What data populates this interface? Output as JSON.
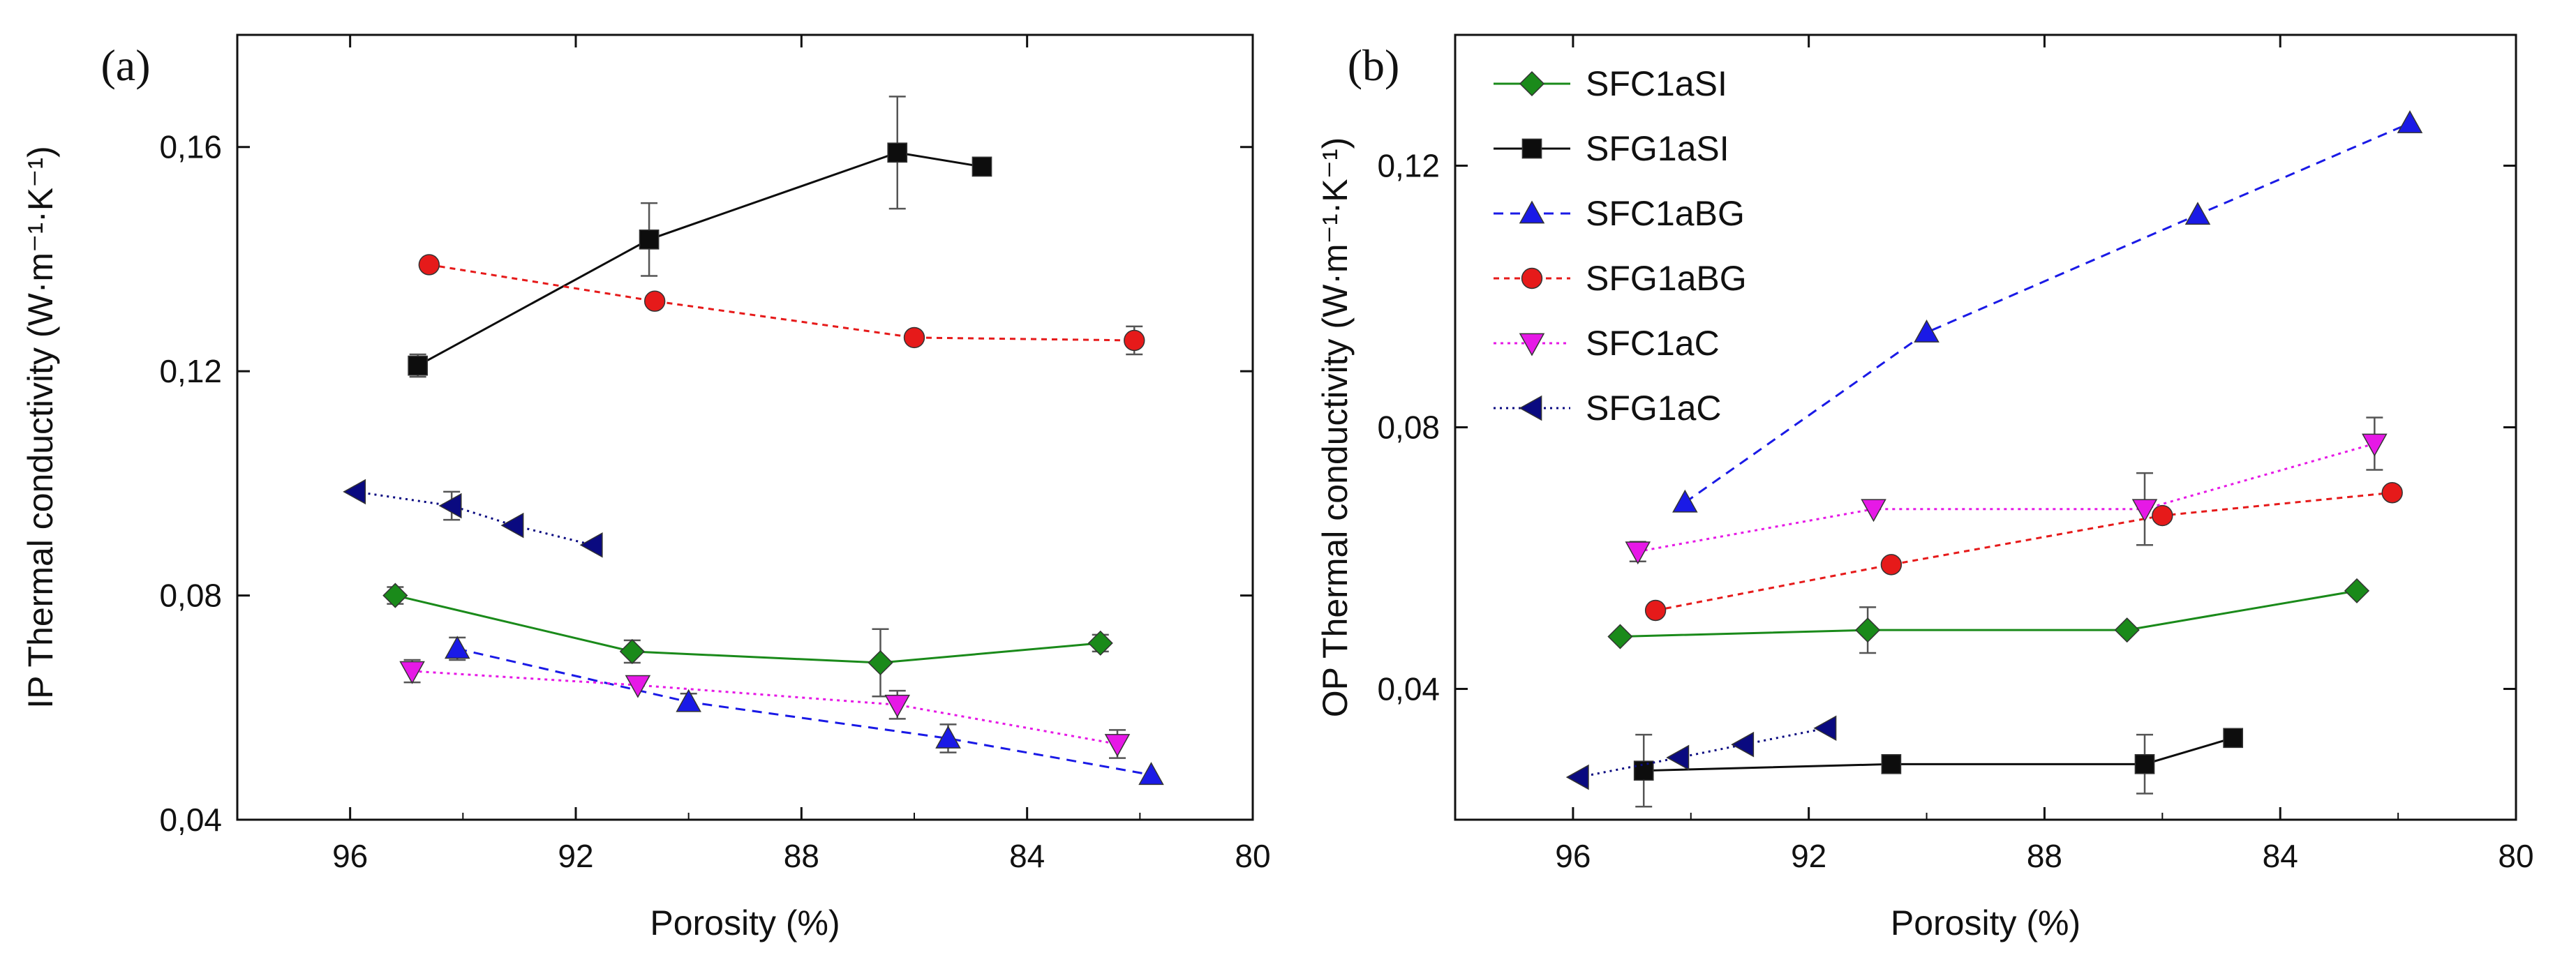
{
  "chart_data": [
    {
      "type": "scatter",
      "panel_label": "(a)",
      "xlabel": "Porosity (%)",
      "ylabel": "IP Thermal conductivity (W·m⁻¹·K⁻¹)",
      "xlim": [
        98,
        80
      ],
      "ylim": [
        0.04,
        0.18
      ],
      "x_ticks": [
        96,
        92,
        88,
        84,
        80
      ],
      "y_ticks": [
        0.04,
        0.08,
        0.12,
        0.16
      ],
      "x_tick_labels": [
        "96",
        "92",
        "88",
        "84",
        "80"
      ],
      "y_tick_labels": [
        "0,04",
        "0,08",
        "0,12",
        "0,16"
      ],
      "series": [
        {
          "name": "SFC1aSI",
          "color": "#1a8a1a",
          "marker": "diamond",
          "dash": "",
          "points": [
            {
              "x": 95.2,
              "y": 0.08,
              "err": 0.0015
            },
            {
              "x": 91.0,
              "y": 0.07,
              "err": 0.002
            },
            {
              "x": 86.6,
              "y": 0.068,
              "err": 0.006
            },
            {
              "x": 82.7,
              "y": 0.0715,
              "err": 0.0015
            }
          ]
        },
        {
          "name": "SFG1aSI",
          "color": "#0d0d0d",
          "marker": "square",
          "dash": "",
          "points": [
            {
              "x": 94.8,
              "y": 0.121,
              "err": 0.002
            },
            {
              "x": 90.7,
              "y": 0.1435,
              "err": 0.0065
            },
            {
              "x": 86.3,
              "y": 0.159,
              "err": 0.01
            },
            {
              "x": 84.8,
              "y": 0.1565,
              "err": 0.0
            }
          ]
        },
        {
          "name": "SFC1aBG",
          "color": "#1a1ae6",
          "marker": "triangle-up",
          "dash": "14,10",
          "points": [
            {
              "x": 94.1,
              "y": 0.0705,
              "err": 0.002
            },
            {
              "x": 90.0,
              "y": 0.061,
              "err": 0.0015
            },
            {
              "x": 85.4,
              "y": 0.0545,
              "err": 0.0025
            },
            {
              "x": 81.8,
              "y": 0.048,
              "err": 0.0
            }
          ]
        },
        {
          "name": "SFG1aBG",
          "color": "#e61a1a",
          "marker": "circle",
          "dash": "8,7",
          "points": [
            {
              "x": 94.6,
              "y": 0.139,
              "err": 0.0
            },
            {
              "x": 90.6,
              "y": 0.1325,
              "err": 0.0
            },
            {
              "x": 86.0,
              "y": 0.126,
              "err": 0.0
            },
            {
              "x": 82.1,
              "y": 0.1255,
              "err": 0.0025
            }
          ]
        },
        {
          "name": "SFC1aC",
          "color": "#e619e6",
          "marker": "triangle-down",
          "dash": "4,6",
          "points": [
            {
              "x": 94.9,
              "y": 0.0665,
              "err": 0.002
            },
            {
              "x": 90.9,
              "y": 0.064,
              "err": 0.0
            },
            {
              "x": 86.3,
              "y": 0.0605,
              "err": 0.0025
            },
            {
              "x": 82.4,
              "y": 0.0535,
              "err": 0.0025
            }
          ]
        },
        {
          "name": "SFG1aC",
          "color": "#0a0a80",
          "marker": "triangle-left",
          "dash": "3,6",
          "points": [
            {
              "x": 95.9,
              "y": 0.0985,
              "err": 0.0
            },
            {
              "x": 94.2,
              "y": 0.096,
              "err": 0.0025
            },
            {
              "x": 93.1,
              "y": 0.0925,
              "err": 0.0
            },
            {
              "x": 91.7,
              "y": 0.089,
              "err": 0.0
            }
          ]
        }
      ]
    },
    {
      "type": "scatter",
      "panel_label": "(b)",
      "xlabel": "Porosity (%)",
      "ylabel": "OP Thermal conductivity (W·m⁻¹·K⁻¹)",
      "xlim": [
        98,
        80
      ],
      "ylim": [
        0.02,
        0.14
      ],
      "x_ticks": [
        96,
        92,
        88,
        84,
        80
      ],
      "y_ticks": [
        0.04,
        0.08,
        0.12
      ],
      "x_tick_labels": [
        "96",
        "92",
        "88",
        "84",
        "80"
      ],
      "y_tick_labels": [
        "0,04",
        "0,08",
        "0,12"
      ],
      "legend": {
        "position": "top-left",
        "entries": [
          "SFC1aSI",
          "SFG1aSI",
          "SFC1aBG",
          "SFG1aBG",
          "SFC1aC",
          "SFG1aC"
        ]
      },
      "series": [
        {
          "name": "SFC1aSI",
          "color": "#1a8a1a",
          "marker": "diamond",
          "dash": "",
          "points": [
            {
              "x": 95.2,
              "y": 0.048,
              "err": 0.0
            },
            {
              "x": 91.0,
              "y": 0.049,
              "err": 0.0035
            },
            {
              "x": 86.6,
              "y": 0.049,
              "err": 0.0
            },
            {
              "x": 82.7,
              "y": 0.055,
              "err": 0.0
            }
          ]
        },
        {
          "name": "SFG1aSI",
          "color": "#0d0d0d",
          "marker": "square",
          "dash": "",
          "points": [
            {
              "x": 94.8,
              "y": 0.0275,
              "err": 0.0055
            },
            {
              "x": 90.6,
              "y": 0.0285,
              "err": 0.0
            },
            {
              "x": 86.3,
              "y": 0.0285,
              "err": 0.0045
            },
            {
              "x": 84.8,
              "y": 0.0325,
              "err": 0.0
            }
          ]
        },
        {
          "name": "SFC1aBG",
          "color": "#1a1ae6",
          "marker": "triangle-up",
          "dash": "14,10",
          "points": [
            {
              "x": 94.1,
              "y": 0.0685,
              "err": 0.0
            },
            {
              "x": 90.0,
              "y": 0.0945,
              "err": 0.0
            },
            {
              "x": 85.4,
              "y": 0.1125,
              "err": 0.0
            },
            {
              "x": 81.8,
              "y": 0.1265,
              "err": 0.0
            }
          ]
        },
        {
          "name": "SFG1aBG",
          "color": "#e61a1a",
          "marker": "circle",
          "dash": "8,7",
          "points": [
            {
              "x": 94.6,
              "y": 0.052,
              "err": 0.0
            },
            {
              "x": 90.6,
              "y": 0.059,
              "err": 0.0
            },
            {
              "x": 86.0,
              "y": 0.0665,
              "err": 0.0
            },
            {
              "x": 82.1,
              "y": 0.07,
              "err": 0.0
            }
          ]
        },
        {
          "name": "SFC1aC",
          "color": "#e619e6",
          "marker": "triangle-down",
          "dash": "4,6",
          "points": [
            {
              "x": 94.9,
              "y": 0.061,
              "err": 0.0015
            },
            {
              "x": 90.9,
              "y": 0.0675,
              "err": 0.0
            },
            {
              "x": 86.3,
              "y": 0.0675,
              "err": 0.0055
            },
            {
              "x": 82.4,
              "y": 0.0775,
              "err": 0.004
            }
          ]
        },
        {
          "name": "SFG1aC",
          "color": "#0a0a80",
          "marker": "triangle-left",
          "dash": "3,6",
          "points": [
            {
              "x": 95.9,
              "y": 0.0265,
              "err": 0.0
            },
            {
              "x": 94.2,
              "y": 0.0295,
              "err": 0.0
            },
            {
              "x": 93.1,
              "y": 0.0315,
              "err": 0.0
            },
            {
              "x": 91.7,
              "y": 0.034,
              "err": 0.0
            }
          ]
        }
      ]
    }
  ]
}
